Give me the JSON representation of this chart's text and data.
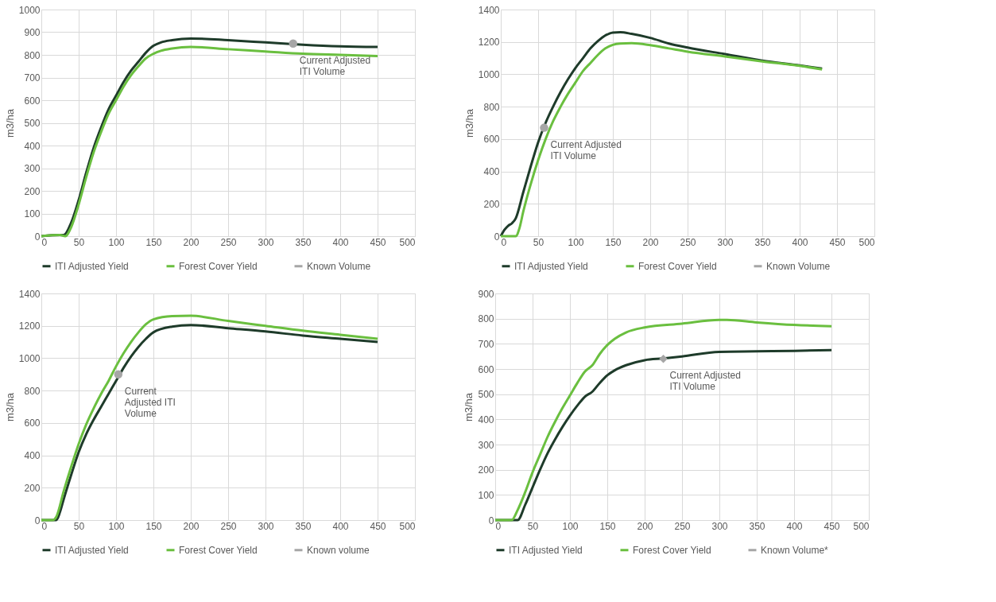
{
  "chart_data": [
    {
      "type": "line",
      "ylabel": "m3/ha",
      "xlim": [
        0,
        500
      ],
      "xticks": [
        0,
        50,
        100,
        150,
        200,
        250,
        300,
        350,
        400,
        450,
        500
      ],
      "ylim": [
        0,
        1000
      ],
      "yticks": [
        0,
        100,
        200,
        300,
        400,
        500,
        600,
        700,
        800,
        900,
        1000
      ],
      "grid": true,
      "legend": "bottom",
      "series": [
        {
          "name": "ITI Adjusted Yield",
          "type": "line",
          "marker": "none",
          "color": "#1e3b2a",
          "x": [
            0,
            25,
            30,
            40,
            50,
            60,
            70,
            80,
            90,
            100,
            110,
            120,
            130,
            140,
            150,
            160,
            175,
            200,
            250,
            300,
            350,
            400,
            450
          ],
          "values": [
            0,
            5,
            5,
            60,
            160,
            280,
            390,
            480,
            560,
            620,
            680,
            730,
            770,
            810,
            840,
            855,
            865,
            872,
            865,
            855,
            845,
            838,
            835
          ]
        },
        {
          "name": "Forest Cover Yield",
          "type": "line",
          "marker": "none",
          "color": "#6abf3f",
          "x": [
            0,
            25,
            32,
            40,
            50,
            60,
            70,
            80,
            90,
            100,
            110,
            120,
            130,
            140,
            150,
            160,
            175,
            200,
            250,
            300,
            350,
            400,
            450
          ],
          "values": [
            0,
            5,
            0,
            40,
            140,
            260,
            370,
            460,
            540,
            600,
            660,
            710,
            750,
            785,
            805,
            818,
            828,
            835,
            825,
            815,
            805,
            800,
            795
          ]
        },
        {
          "name": "Known Volume",
          "type": "scatter",
          "marker": "circle",
          "color": "#a6a6a6",
          "x": [
            337
          ],
          "values": [
            850
          ]
        }
      ],
      "annotations": [
        {
          "text": "Current Adjusted\nITI Volume",
          "x": 337,
          "y": 850
        }
      ]
    },
    {
      "type": "line",
      "ylabel": "m3/ha",
      "xlim": [
        0,
        500
      ],
      "xticks": [
        0,
        50,
        100,
        150,
        200,
        250,
        300,
        350,
        400,
        450,
        500
      ],
      "ylim": [
        0,
        1400
      ],
      "yticks": [
        0,
        200,
        400,
        600,
        800,
        1000,
        1200,
        1400
      ],
      "grid": true,
      "legend": "bottom",
      "series": [
        {
          "name": "ITI Adjusted Yield",
          "type": "line",
          "marker": "none",
          "color": "#1e3b2a",
          "x": [
            0,
            5,
            10,
            15,
            20,
            30,
            40,
            50,
            60,
            70,
            80,
            90,
            100,
            110,
            120,
            130,
            140,
            150,
            160,
            175,
            200,
            225,
            250,
            300,
            350,
            400,
            430
          ],
          "values": [
            0,
            40,
            65,
            80,
            110,
            270,
            430,
            580,
            700,
            800,
            890,
            970,
            1040,
            1100,
            1160,
            1205,
            1240,
            1258,
            1260,
            1250,
            1225,
            1190,
            1165,
            1125,
            1085,
            1055,
            1035
          ]
        },
        {
          "name": "Forest Cover Yield",
          "type": "line",
          "marker": "none",
          "color": "#6abf3f",
          "x": [
            0,
            20,
            25,
            30,
            40,
            50,
            60,
            70,
            80,
            90,
            100,
            110,
            120,
            130,
            140,
            150,
            160,
            175,
            200,
            225,
            250,
            300,
            350,
            400,
            430
          ],
          "values": [
            0,
            0,
            50,
            150,
            320,
            470,
            600,
            710,
            800,
            880,
            950,
            1020,
            1070,
            1120,
            1160,
            1182,
            1190,
            1192,
            1180,
            1160,
            1140,
            1110,
            1080,
            1052,
            1030
          ]
        },
        {
          "name": "Known Volume",
          "type": "scatter",
          "marker": "circle",
          "color": "#a6a6a6",
          "x": [
            58
          ],
          "values": [
            670
          ]
        }
      ],
      "annotations": [
        {
          "text": "Current Adjusted\nITI Volume",
          "x": 58,
          "y": 670
        }
      ]
    },
    {
      "type": "line",
      "ylabel": "m3/ha",
      "xlim": [
        0,
        500
      ],
      "xticks": [
        0,
        50,
        100,
        150,
        200,
        250,
        300,
        350,
        400,
        450,
        500
      ],
      "ylim": [
        0,
        1400
      ],
      "yticks": [
        0,
        200,
        400,
        600,
        800,
        1000,
        1200,
        1400
      ],
      "grid": true,
      "legend": "bottom",
      "series": [
        {
          "name": "ITI Adjusted Yield",
          "type": "line",
          "marker": "none",
          "color": "#1e3b2a",
          "x": [
            0,
            15,
            20,
            25,
            30,
            40,
            50,
            60,
            70,
            80,
            90,
            100,
            110,
            120,
            130,
            140,
            150,
            175,
            200,
            250,
            300,
            350,
            400,
            450
          ],
          "values": [
            0,
            0,
            0,
            50,
            130,
            280,
            420,
            530,
            620,
            700,
            780,
            860,
            940,
            1010,
            1070,
            1120,
            1160,
            1195,
            1205,
            1185,
            1165,
            1140,
            1120,
            1100
          ]
        },
        {
          "name": "Forest Cover Yield",
          "type": "line",
          "marker": "none",
          "color": "#6abf3f",
          "x": [
            0,
            15,
            20,
            30,
            40,
            50,
            60,
            70,
            80,
            90,
            100,
            110,
            120,
            130,
            140,
            150,
            175,
            200,
            250,
            300,
            350,
            400,
            450
          ],
          "values": [
            0,
            0,
            20,
            180,
            330,
            470,
            590,
            690,
            780,
            860,
            950,
            1030,
            1100,
            1160,
            1210,
            1240,
            1260,
            1262,
            1230,
            1200,
            1170,
            1145,
            1120
          ]
        },
        {
          "name": "Known volume",
          "type": "scatter",
          "marker": "circle",
          "color": "#a6a6a6",
          "x": [
            103
          ],
          "values": [
            900
          ]
        }
      ],
      "annotations": [
        {
          "text": "Current\nAdjusted ITI\nVolume",
          "x": 103,
          "y": 900
        }
      ]
    },
    {
      "type": "line",
      "ylabel": "m3/ha",
      "xlim": [
        0,
        500
      ],
      "xticks": [
        0,
        50,
        100,
        150,
        200,
        250,
        300,
        350,
        400,
        450,
        500
      ],
      "ylim": [
        0,
        900
      ],
      "yticks": [
        0,
        100,
        200,
        300,
        400,
        500,
        600,
        700,
        800,
        900
      ],
      "grid": true,
      "legend": "bottom",
      "series": [
        {
          "name": "ITI Adjusted Yield",
          "type": "line",
          "marker": "none",
          "color": "#1e3b2a",
          "x": [
            0,
            25,
            30,
            40,
            50,
            60,
            70,
            80,
            90,
            100,
            110,
            120,
            130,
            140,
            150,
            160,
            175,
            200,
            225,
            250,
            300,
            350,
            400,
            450
          ],
          "values": [
            0,
            0,
            0,
            60,
            130,
            200,
            265,
            320,
            370,
            415,
            455,
            490,
            510,
            545,
            575,
            595,
            615,
            635,
            642,
            650,
            668,
            670,
            672,
            675
          ]
        },
        {
          "name": "Forest Cover Yield",
          "type": "line",
          "marker": "none",
          "color": "#6abf3f",
          "x": [
            0,
            22,
            30,
            40,
            50,
            60,
            70,
            80,
            90,
            100,
            110,
            120,
            130,
            140,
            150,
            160,
            175,
            200,
            250,
            300,
            310,
            350,
            400,
            450
          ],
          "values": [
            0,
            0,
            40,
            110,
            190,
            260,
            330,
            390,
            445,
            495,
            545,
            590,
            615,
            660,
            695,
            720,
            745,
            765,
            780,
            795,
            795,
            785,
            775,
            770
          ]
        },
        {
          "name": "Known Volume*",
          "type": "scatter",
          "marker": "diamond",
          "color": "#a6a6a6",
          "x": [
            225
          ],
          "values": [
            640
          ]
        }
      ],
      "annotations": [
        {
          "text": "Current Adjusted\nITI Volume",
          "x": 225,
          "y": 640
        }
      ]
    }
  ]
}
